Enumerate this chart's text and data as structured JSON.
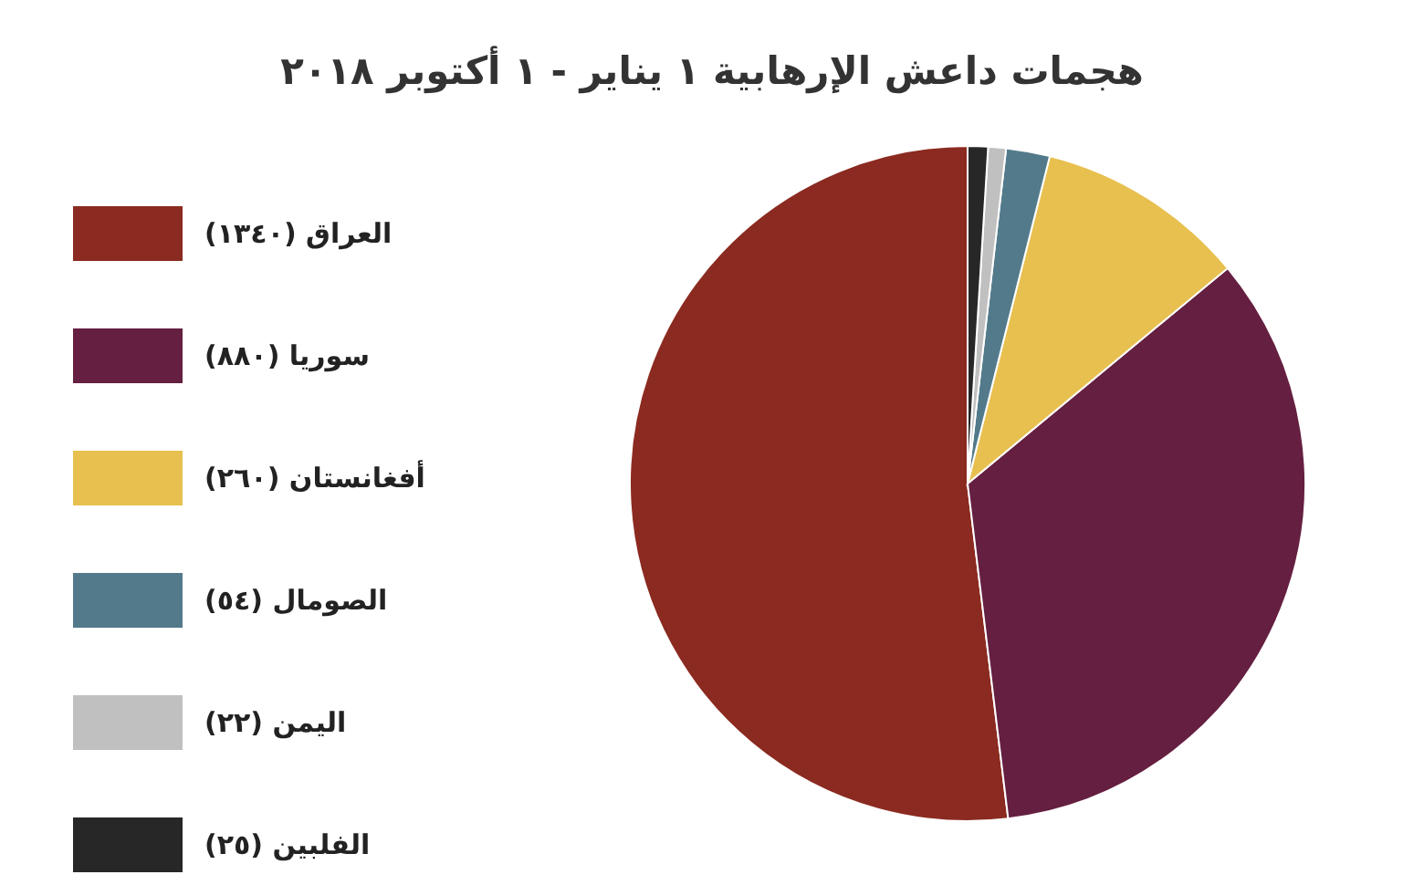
{
  "chart_data": {
    "type": "pie",
    "title": "هجمات داعش الإرهابية   ١ يناير - ١ أكتوبر ٢٠١٨",
    "categories": [
      "العراق (١٣٤٠)",
      "سوريا (٨٨٠)",
      "أفغانستان (٢٦٠)",
      "الصومال (٥٤)",
      "اليمن (٢٢)",
      "الفلبين (٢٥)"
    ],
    "values": [
      1340,
      880,
      260,
      54,
      22,
      25
    ],
    "colors": [
      "#8b2a20",
      "#651f40",
      "#e8c050",
      "#537a8a",
      "#c0c0c0",
      "#272727"
    ],
    "legend": "left"
  }
}
